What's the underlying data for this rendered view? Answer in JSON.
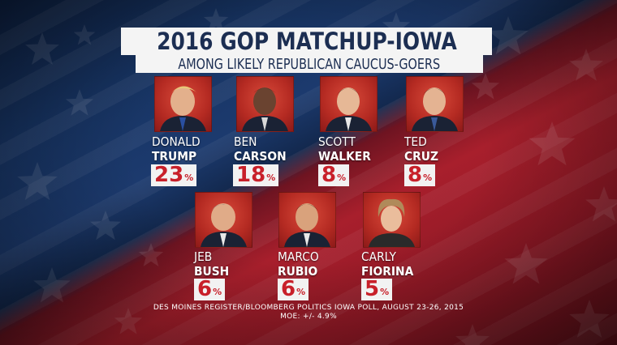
{
  "header": {
    "title": "2016 GOP MATCHUP-IOWA",
    "subtitle": "AMONG LIKELY REPUBLICAN CAUCUS-GOERS"
  },
  "candidates": [
    {
      "first": "DONALD",
      "last": "TRUMP",
      "value": "23",
      "pct_sign": "%"
    },
    {
      "first": "BEN",
      "last": "CARSON",
      "value": "18",
      "pct_sign": "%"
    },
    {
      "first": "SCOTT",
      "last": "WALKER",
      "value": "8",
      "pct_sign": "%"
    },
    {
      "first": "TED",
      "last": "CRUZ",
      "value": "8",
      "pct_sign": "%"
    },
    {
      "first": "JEB",
      "last": "BUSH",
      "value": "6",
      "pct_sign": "%"
    },
    {
      "first": "MARCO",
      "last": "RUBIO",
      "value": "6",
      "pct_sign": "%"
    },
    {
      "first": "CARLY",
      "last": "FIORINA",
      "value": "5",
      "pct_sign": "%"
    }
  ],
  "footer": {
    "source": "DES MOINES REGISTER/BLOOMBERG POLITICS IOWA POLL, AUGUST 23-26, 2015",
    "moe": "MOE: +/- 4.9%"
  },
  "colors": {
    "title_bg": "#f4f4f4",
    "title_text": "#1c2e52",
    "pct_text": "#c8202a",
    "photo_bg": "#b42a22"
  },
  "chart_data": {
    "type": "table",
    "title": "2016 GOP MATCHUP-IOWA",
    "subtitle": "AMONG LIKELY REPUBLICAN CAUCUS-GOERS",
    "categories": [
      "DONALD TRUMP",
      "BEN CARSON",
      "SCOTT WALKER",
      "TED CRUZ",
      "JEB BUSH",
      "MARCO RUBIO",
      "CARLY FIORINA"
    ],
    "values": [
      23,
      18,
      8,
      8,
      6,
      6,
      5
    ],
    "unit": "%"
  }
}
